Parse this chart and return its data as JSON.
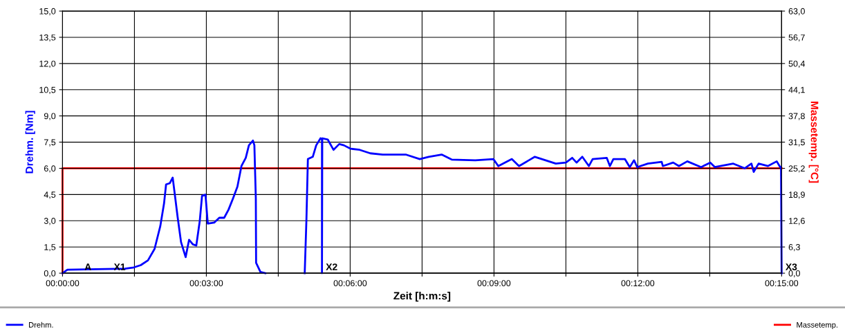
{
  "chart_data": {
    "type": "line",
    "xlabel": "Zeit [h:m:s]",
    "ylabel": "Drehm. [Nm]",
    "y2label": "Massetemp. [°C]",
    "series": [
      {
        "name": "Drehm.",
        "color": "#0000ff",
        "x": [
          0,
          0.0017,
          0.0217,
          0.0248,
          0.0272,
          0.0297,
          0.032,
          0.034,
          0.0353,
          0.036,
          0.0373,
          0.0383,
          0.0388,
          0.04,
          0.0412,
          0.0428,
          0.044,
          0.0453,
          0.0465,
          0.0477,
          0.0485,
          0.0497,
          0.0505,
          0.0528,
          0.0545,
          0.0562,
          0.0577,
          0.0593,
          0.0608,
          0.0622,
          0.0637,
          0.0648,
          0.0662,
          0.0667,
          0.0672,
          0.0673,
          0.0688,
          0.0705,
          0.0767,
          0.0842,
          0.0848,
          0.0853,
          0.087,
          0.0882,
          0.0897,
          0.0902,
          0.0902,
          0.0903,
          0.0922,
          0.0942,
          0.0962,
          0.0978,
          0.1002,
          0.1033,
          0.107,
          0.1113,
          0.1193,
          0.1242,
          0.1273,
          0.1318,
          0.1353,
          0.1435,
          0.1498,
          0.1515,
          0.1562,
          0.1587,
          0.1642,
          0.1715,
          0.175,
          0.1772,
          0.1787,
          0.1807,
          0.183,
          0.1843,
          0.1892,
          0.1903,
          0.1915,
          0.1955,
          0.1972,
          0.1987,
          0.1998,
          0.2035,
          0.2083,
          0.2087,
          0.2123,
          0.2143,
          0.2172,
          0.222,
          0.2252,
          0.2268,
          0.2332,
          0.2372,
          0.2395,
          0.2403,
          0.242,
          0.2452,
          0.2483,
          0.2495,
          0.2498,
          0.25
        ],
        "values": [
          0,
          0.2,
          0.26,
          0.33,
          0.46,
          0.73,
          1.39,
          2.7,
          4.0,
          5.08,
          5.15,
          5.47,
          4.82,
          3.23,
          1.78,
          0.92,
          1.91,
          1.65,
          1.58,
          2.97,
          4.42,
          4.49,
          2.84,
          2.9,
          3.17,
          3.17,
          3.63,
          4.29,
          4.95,
          6.13,
          6.6,
          7.32,
          7.59,
          7.32,
          4.29,
          0.59,
          0.07,
          0,
          null,
          0,
          3.1,
          6.53,
          6.66,
          7.32,
          7.72,
          7.65,
          0,
          7.72,
          7.65,
          7.06,
          7.39,
          7.32,
          7.12,
          7.06,
          6.86,
          6.79,
          6.79,
          6.53,
          6.66,
          6.79,
          6.5,
          6.46,
          6.53,
          6.13,
          6.53,
          6.13,
          6.66,
          6.27,
          6.33,
          6.6,
          6.33,
          6.66,
          6.13,
          6.53,
          6.6,
          6.13,
          6.53,
          6.53,
          6.07,
          6.46,
          6.07,
          6.27,
          6.37,
          6.13,
          6.33,
          6.13,
          6.4,
          6.07,
          6.33,
          6.07,
          6.27,
          6.0,
          6.27,
          5.8,
          6.27,
          6.13,
          6.4,
          6.07,
          6.07,
          0
        ]
      },
      {
        "name": "Massetemp.",
        "color": "#ff0000",
        "axis": "y2",
        "x": [
          0,
          0,
          0.25
        ],
        "values": [
          0,
          25.2,
          25.2
        ]
      }
    ],
    "xlim": [
      0,
      0.25
    ],
    "xticks": [
      {
        "value": 0,
        "label": "00:00:00"
      },
      {
        "value": 0.025,
        "label": null
      },
      {
        "value": 0.05,
        "label": "00:03:00"
      },
      {
        "value": 0.075,
        "label": null
      },
      {
        "value": 0.1,
        "label": "00:06:00"
      },
      {
        "value": 0.125,
        "label": null
      },
      {
        "value": 0.15,
        "label": "00:09:00"
      },
      {
        "value": 0.175,
        "label": null
      },
      {
        "value": 0.2,
        "label": "00:12:00"
      },
      {
        "value": 0.225,
        "label": null
      },
      {
        "value": 0.25,
        "label": "00:15:00"
      }
    ],
    "ylim": [
      0,
      15
    ],
    "yticks": [
      {
        "value": 0,
        "label": "0,0"
      },
      {
        "value": 1.5,
        "label": "1,5"
      },
      {
        "value": 3,
        "label": "3,0"
      },
      {
        "value": 4.5,
        "label": "4,5"
      },
      {
        "value": 6,
        "label": "6,0"
      },
      {
        "value": 7.5,
        "label": "7,5"
      },
      {
        "value": 9,
        "label": "9,0"
      },
      {
        "value": 10.5,
        "label": "10,5"
      },
      {
        "value": 12,
        "label": "12,0"
      },
      {
        "value": 13.5,
        "label": "13,5"
      },
      {
        "value": 15,
        "label": "15,0"
      }
    ],
    "y2lim": [
      0,
      63
    ],
    "y2ticks": [
      {
        "value": 0,
        "label": "0,0"
      },
      {
        "value": 6.3,
        "label": "6,3"
      },
      {
        "value": 12.6,
        "label": "12,6"
      },
      {
        "value": 18.9,
        "label": "18,9"
      },
      {
        "value": 25.2,
        "label": "25,2"
      },
      {
        "value": 31.5,
        "label": "31,5"
      },
      {
        "value": 37.8,
        "label": "37,8"
      },
      {
        "value": 44.1,
        "label": "44,1"
      },
      {
        "value": 50.4,
        "label": "50,4"
      },
      {
        "value": 56.7,
        "label": "56,7"
      },
      {
        "value": 63,
        "label": "63,0"
      }
    ],
    "annotations": [
      {
        "text": "A",
        "x": 0.0063,
        "y": 0
      },
      {
        "text": "X1",
        "x": 0.0165,
        "y": 0
      },
      {
        "text": "X2",
        "x": 0.0902,
        "y": 0
      },
      {
        "text": "X3",
        "x": 0.25,
        "y": 0
      }
    ],
    "grid": true,
    "legend": "bottom",
    "marker": "none",
    "line_style": "solid"
  }
}
